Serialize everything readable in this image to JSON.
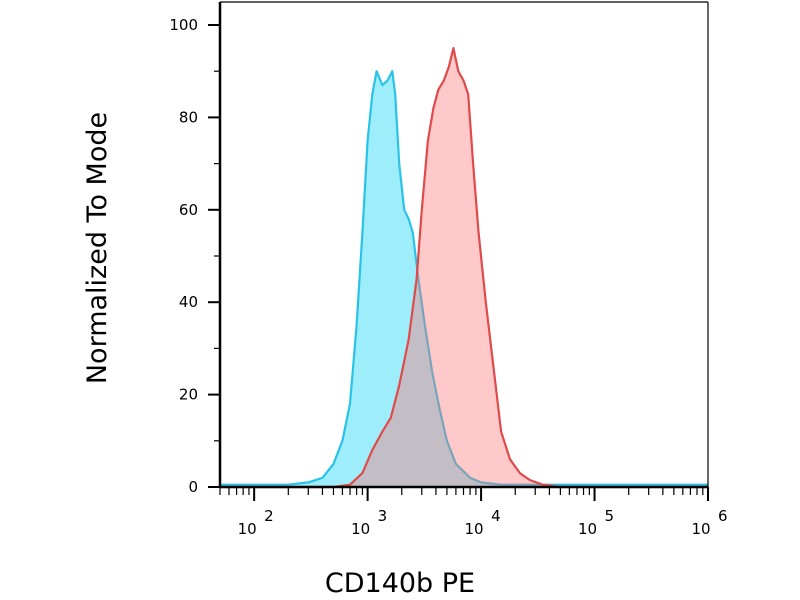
{
  "chart_data": {
    "type": "area",
    "xscale": "log",
    "xlim": [
      50,
      1000000
    ],
    "ylim": [
      0,
      100
    ],
    "xlabel": "CD140b PE",
    "ylabel": "Normalized To Mode",
    "grid": false,
    "y_ticks": [
      "0",
      "20",
      "40",
      "60",
      "80",
      "100"
    ],
    "x_ticks": [
      {
        "base": "10",
        "exp": "2",
        "value": 100
      },
      {
        "base": "10",
        "exp": "3",
        "value": 1000
      },
      {
        "base": "10",
        "exp": "4",
        "value": 10000
      },
      {
        "base": "10",
        "exp": "5",
        "value": 100000
      },
      {
        "base": "10",
        "exp": "6",
        "value": 1000000
      }
    ],
    "series": [
      {
        "color": "#29c3e8",
        "fill": "#00d0f5",
        "points": [
          [
            50,
            0.5
          ],
          [
            200,
            0.5
          ],
          [
            300,
            1
          ],
          [
            400,
            2
          ],
          [
            500,
            5
          ],
          [
            600,
            10
          ],
          [
            700,
            18
          ],
          [
            800,
            35
          ],
          [
            900,
            55
          ],
          [
            1000,
            75
          ],
          [
            1100,
            85
          ],
          [
            1200,
            90
          ],
          [
            1350,
            87
          ],
          [
            1500,
            88
          ],
          [
            1650,
            90
          ],
          [
            1750,
            85
          ],
          [
            1900,
            70
          ],
          [
            2100,
            60
          ],
          [
            2300,
            58
          ],
          [
            2500,
            55
          ],
          [
            2800,
            45
          ],
          [
            3200,
            35
          ],
          [
            3700,
            25
          ],
          [
            4300,
            17
          ],
          [
            5000,
            10
          ],
          [
            6000,
            5
          ],
          [
            8000,
            2
          ],
          [
            10000,
            1
          ],
          [
            15000,
            0.5
          ],
          [
            1000000,
            0.5
          ]
        ]
      },
      {
        "color": "#e04a4a",
        "fill": "#ff7070",
        "points": [
          [
            50,
            0
          ],
          [
            500,
            0
          ],
          [
            700,
            0.5
          ],
          [
            900,
            3
          ],
          [
            1100,
            8
          ],
          [
            1350,
            12
          ],
          [
            1600,
            15
          ],
          [
            1900,
            22
          ],
          [
            2300,
            32
          ],
          [
            2700,
            45
          ],
          [
            3000,
            60
          ],
          [
            3400,
            75
          ],
          [
            3800,
            82
          ],
          [
            4200,
            86
          ],
          [
            4700,
            88
          ],
          [
            5200,
            91
          ],
          [
            5700,
            95
          ],
          [
            6300,
            90
          ],
          [
            7000,
            88
          ],
          [
            7700,
            85
          ],
          [
            8500,
            70
          ],
          [
            9500,
            55
          ],
          [
            11000,
            40
          ],
          [
            13000,
            25
          ],
          [
            15000,
            12
          ],
          [
            18000,
            6
          ],
          [
            22000,
            3
          ],
          [
            27000,
            1.5
          ],
          [
            35000,
            0.5
          ],
          [
            50000,
            0
          ],
          [
            1000000,
            0
          ]
        ]
      }
    ]
  }
}
